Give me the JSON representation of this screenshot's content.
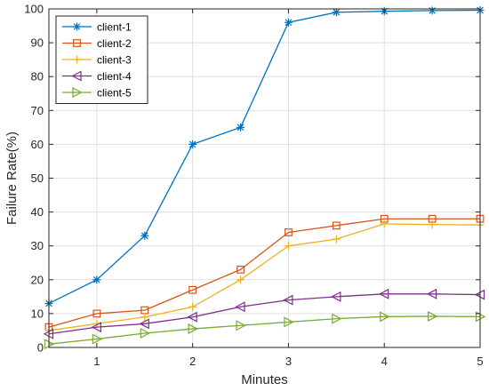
{
  "chart_data": {
    "type": "line",
    "xlabel": "Minutes",
    "ylabel": "Failure Rate(%)",
    "xlim": [
      0.5,
      5
    ],
    "ylim": [
      0,
      100
    ],
    "xticks": [
      1,
      2,
      3,
      4,
      5
    ],
    "yticks": [
      0,
      10,
      20,
      30,
      40,
      50,
      60,
      70,
      80,
      90,
      100
    ],
    "grid": true,
    "legend_position": "top-left",
    "x": [
      0.5,
      1,
      1.5,
      2,
      2.5,
      3,
      3.5,
      4,
      4.5,
      5
    ],
    "series": [
      {
        "name": "client-1",
        "color": "#0072BD",
        "marker": "asterisk",
        "values": [
          13,
          20,
          33,
          60,
          65,
          96,
          99,
          99.3,
          99.5,
          99.6
        ]
      },
      {
        "name": "client-2",
        "color": "#D95319",
        "marker": "square",
        "values": [
          6,
          10,
          11,
          17,
          23,
          34,
          36,
          38,
          38,
          38
        ]
      },
      {
        "name": "client-3",
        "color": "#EDB120",
        "marker": "plus",
        "values": [
          5,
          7,
          9,
          12,
          20,
          30,
          32,
          36.5,
          36.3,
          36.2
        ]
      },
      {
        "name": "client-4",
        "color": "#7E2F8E",
        "marker": "triangle-left",
        "values": [
          4,
          6,
          7,
          9,
          12,
          14,
          15,
          15.8,
          15.8,
          15.6
        ]
      },
      {
        "name": "client-5",
        "color": "#77AC30",
        "marker": "triangle-right",
        "values": [
          1,
          2.5,
          4.2,
          5.5,
          6.5,
          7.5,
          8.5,
          9.1,
          9.2,
          9.1
        ]
      }
    ]
  }
}
